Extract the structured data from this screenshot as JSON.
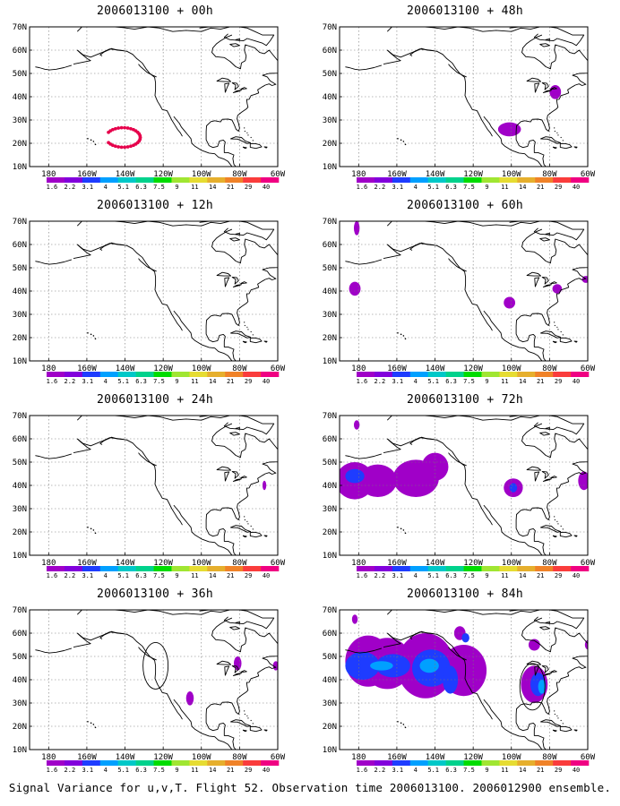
{
  "panels": [
    {
      "title": "2006013100 + 00h",
      "overlay": "ring",
      "blobs": []
    },
    {
      "title": "2006013100 + 48h",
      "overlay": null,
      "blobs": [
        {
          "lon": -101,
          "lat": 26,
          "rx": 6,
          "ry": 3,
          "level": 1
        },
        {
          "lon": -77,
          "lat": 42,
          "rx": 3,
          "ry": 3,
          "level": 1
        }
      ]
    },
    {
      "title": "2006013100 + 12h",
      "overlay": null,
      "blobs": []
    },
    {
      "title": "2006013100 + 60h",
      "overlay": null,
      "blobs": [
        {
          "lon": 178,
          "lat": 41,
          "rx": 3,
          "ry": 3,
          "level": 1
        },
        {
          "lon": 179,
          "lat": 67,
          "rx": 1.5,
          "ry": 3,
          "level": 1
        },
        {
          "lon": -101,
          "lat": 35,
          "rx": 3,
          "ry": 2.5,
          "level": 1
        },
        {
          "lon": -76,
          "lat": 41,
          "rx": 2.5,
          "ry": 2,
          "level": 1
        },
        {
          "lon": -61,
          "lat": 45,
          "rx": 2,
          "ry": 1.5,
          "level": 1
        }
      ]
    },
    {
      "title": "2006013100 + 24h",
      "overlay": null,
      "blobs": [
        {
          "lon": -67,
          "lat": 40,
          "rx": 1,
          "ry": 2,
          "level": 1
        }
      ]
    },
    {
      "title": "2006013100 + 72h",
      "overlay": null,
      "blobs": [
        {
          "lon": 178,
          "lat": 42,
          "rx": 10,
          "ry": 8,
          "level": 1
        },
        {
          "lon": 178,
          "lat": 44,
          "rx": 5,
          "ry": 3,
          "level": 2
        },
        {
          "lon": -170,
          "lat": 42,
          "rx": 10,
          "ry": 7,
          "level": 1
        },
        {
          "lon": -150,
          "lat": 43,
          "rx": 12,
          "ry": 8,
          "level": 1
        },
        {
          "lon": -140,
          "lat": 48,
          "rx": 7,
          "ry": 6,
          "level": 1
        },
        {
          "lon": -99,
          "lat": 39,
          "rx": 5,
          "ry": 4,
          "level": 1
        },
        {
          "lon": -99,
          "lat": 39,
          "rx": 2,
          "ry": 2,
          "level": 2
        },
        {
          "lon": -62,
          "lat": 42,
          "rx": 3,
          "ry": 4,
          "level": 1
        },
        {
          "lon": 179,
          "lat": 66,
          "rx": 1.5,
          "ry": 2,
          "level": 1
        }
      ]
    },
    {
      "title": "2006013100 + 36h",
      "overlay": "circle",
      "blobs": [
        {
          "lon": -81,
          "lat": 47,
          "rx": 2,
          "ry": 3,
          "level": 1
        },
        {
          "lon": -106,
          "lat": 32,
          "rx": 2,
          "ry": 3,
          "level": 1
        },
        {
          "lon": -61,
          "lat": 46,
          "rx": 1.5,
          "ry": 2,
          "level": 1
        }
      ]
    },
    {
      "title": "2006013100 + 84h",
      "overlay": "circle-east",
      "blobs": [
        {
          "lon": 185,
          "lat": 48,
          "rx": 12,
          "ry": 11,
          "level": 1
        },
        {
          "lon": -165,
          "lat": 47,
          "rx": 13,
          "ry": 11,
          "level": 1
        },
        {
          "lon": -145,
          "lat": 46,
          "rx": 15,
          "ry": 14,
          "level": 1
        },
        {
          "lon": -125,
          "lat": 44,
          "rx": 12,
          "ry": 11,
          "level": 1
        },
        {
          "lon": 182,
          "lat": 46,
          "rx": 9,
          "ry": 6,
          "level": 2
        },
        {
          "lon": -162,
          "lat": 46,
          "rx": 9,
          "ry": 5,
          "level": 2
        },
        {
          "lon": -142,
          "lat": 45,
          "rx": 10,
          "ry": 8,
          "level": 2
        },
        {
          "lon": -132,
          "lat": 40,
          "rx": 4,
          "ry": 6,
          "level": 2
        },
        {
          "lon": -168,
          "lat": 46,
          "rx": 6,
          "ry": 2,
          "level": 3
        },
        {
          "lon": -143,
          "lat": 46,
          "rx": 5,
          "ry": 3,
          "level": 3
        },
        {
          "lon": -88,
          "lat": 38,
          "rx": 7,
          "ry": 8,
          "level": 1
        },
        {
          "lon": -86,
          "lat": 38,
          "rx": 4,
          "ry": 5,
          "level": 2
        },
        {
          "lon": -84,
          "lat": 37,
          "rx": 2,
          "ry": 3,
          "level": 3
        },
        {
          "lon": -88,
          "lat": 55,
          "rx": 3,
          "ry": 2.5,
          "level": 1
        },
        {
          "lon": -127,
          "lat": 60,
          "rx": 3,
          "ry": 3,
          "level": 1
        },
        {
          "lon": -124,
          "lat": 58,
          "rx": 2,
          "ry": 2,
          "level": 2
        },
        {
          "lon": 178,
          "lat": 66,
          "rx": 1.5,
          "ry": 2,
          "level": 1
        },
        {
          "lon": -60,
          "lat": 55,
          "rx": 1.5,
          "ry": 2,
          "level": 1
        }
      ]
    }
  ],
  "lat_labels": [
    "10N",
    "20N",
    "30N",
    "40N",
    "50N",
    "60N",
    "70N"
  ],
  "lon_labels": [
    "180",
    "160W",
    "140W",
    "120W",
    "100W",
    "80W",
    "60W"
  ],
  "colorbar_labels": [
    "1.6",
    "2.2",
    "3.1",
    "4",
    "5.1",
    "6.3",
    "7.5",
    "9",
    "11",
    "14",
    "21",
    "29",
    "40"
  ],
  "colorbar_colors": [
    "#a000c8",
    "#8200dc",
    "#1e3cff",
    "#00a0ff",
    "#00c8c8",
    "#00d28c",
    "#00dc00",
    "#a0e632",
    "#e6dc32",
    "#e6af2d",
    "#f08228",
    "#fa3c3c",
    "#f00082"
  ],
  "colors": {
    "level1": "#a000c8",
    "level2": "#1e3cff",
    "level3": "#00a0ff",
    "ring": "#e6004b"
  },
  "caption": "Signal Variance for u,v,T. Flight 52. Observation time 2006013100. 2006012900 ensemble."
}
